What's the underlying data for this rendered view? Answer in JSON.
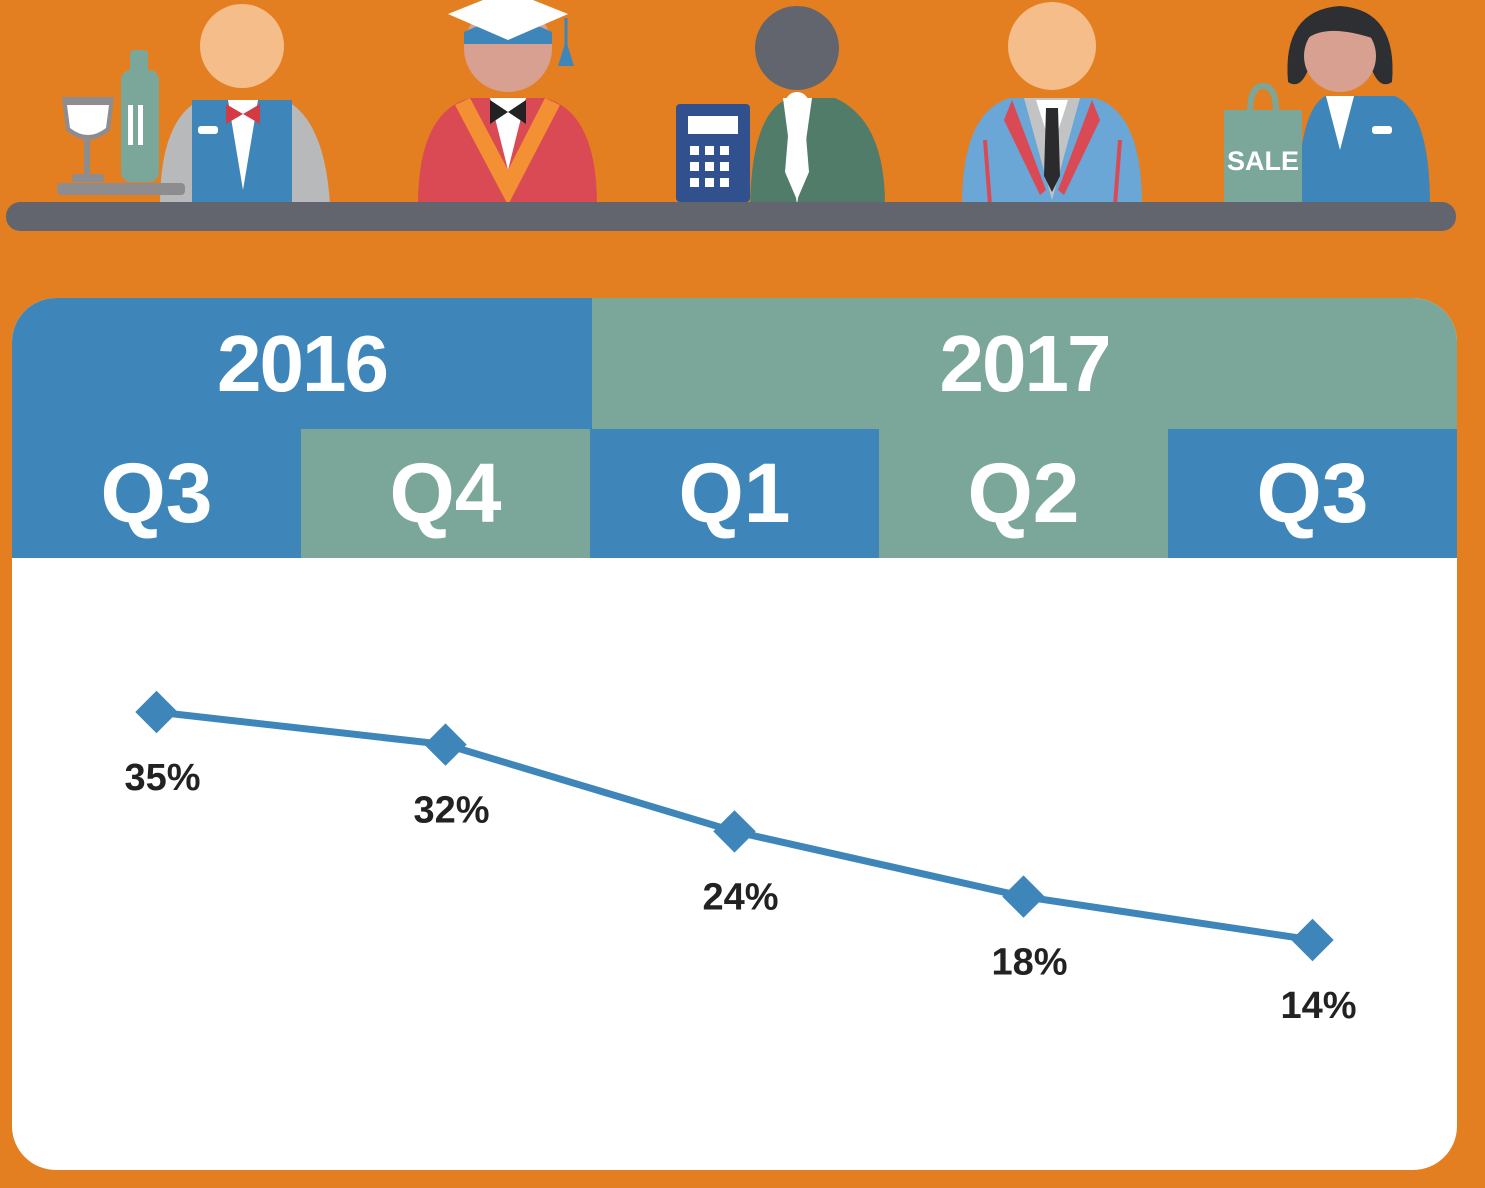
{
  "header": {
    "years": [
      {
        "label": "2016"
      },
      {
        "label": "2017"
      }
    ],
    "quarters": [
      "Q3",
      "Q4",
      "Q1",
      "Q2",
      "Q3"
    ]
  },
  "illustration": {
    "sale_sign": "SALE",
    "figures": [
      "waiter",
      "graduate",
      "accountant",
      "businessman",
      "saleswoman"
    ]
  },
  "colors": {
    "background": "#e47f21",
    "blue": "#3e86ba",
    "green": "#7ba79a",
    "line": "#3e86ba",
    "label": "#222222"
  },
  "chart_data": {
    "type": "line",
    "categories": [
      "Q3",
      "Q4",
      "Q1",
      "Q2",
      "Q3"
    ],
    "values": [
      35,
      32,
      24,
      18,
      14
    ],
    "value_labels": [
      "35%",
      "32%",
      "24%",
      "18%",
      "14%"
    ]
  }
}
